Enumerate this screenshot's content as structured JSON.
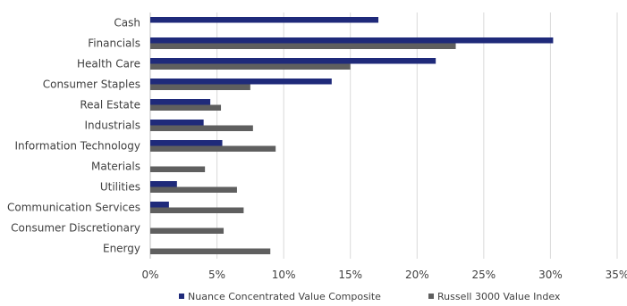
{
  "chart_data": {
    "type": "bar",
    "orientation": "horizontal",
    "categories": [
      "Cash",
      "Financials",
      "Health Care",
      "Consumer Staples",
      "Real Estate",
      "Industrials",
      "Information Technology",
      "Materials",
      "Utilities",
      "Communication Services",
      "Consumer Discretionary",
      "Energy"
    ],
    "series": [
      {
        "name": "Nuance Concentrated Value Composite",
        "color": "#1f2a7a",
        "values": [
          17.1,
          30.2,
          21.4,
          13.6,
          4.5,
          4.0,
          5.4,
          0,
          2.0,
          1.4,
          0,
          0
        ]
      },
      {
        "name": "Russell 3000 Value Index",
        "color": "#5f5f5f",
        "values": [
          0,
          22.9,
          15.0,
          7.5,
          5.3,
          7.7,
          9.4,
          4.1,
          6.5,
          7.0,
          5.5,
          9.0
        ]
      }
    ],
    "x_ticks": [
      "0%",
      "5%",
      "10%",
      "15%",
      "20%",
      "25%",
      "30%",
      "35%"
    ],
    "xlim": [
      0,
      35
    ],
    "grid": "vertical",
    "legend_position": "bottom"
  }
}
